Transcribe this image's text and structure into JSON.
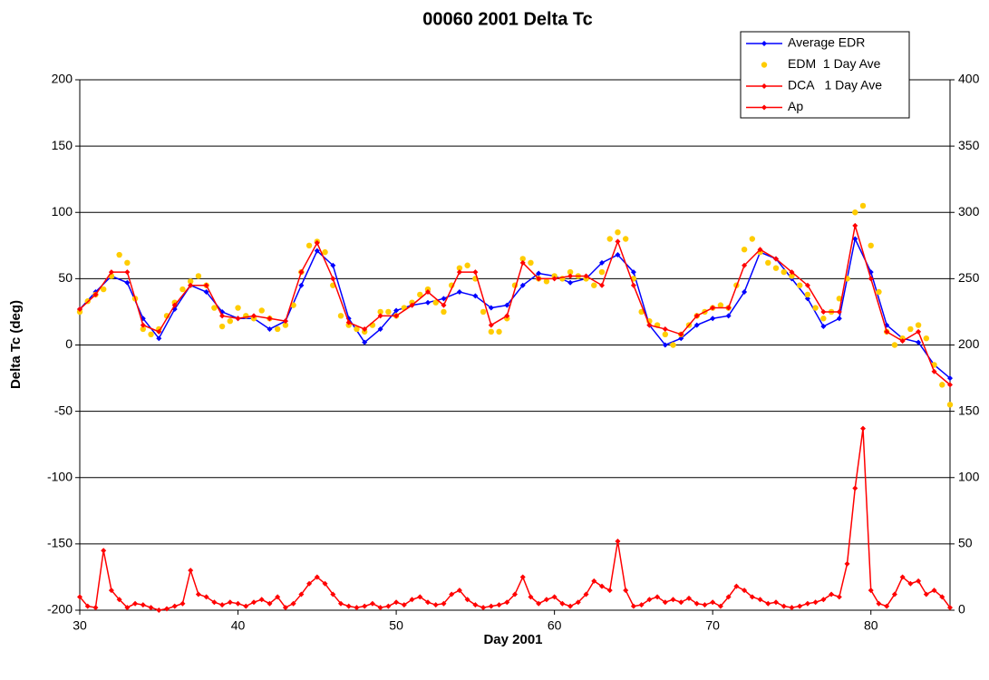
{
  "chart_data": {
    "type": "line",
    "title": "00060 2001 Delta Tc",
    "x_label": "Day 2001",
    "y_label": "Delta Tc (deg)",
    "xlim": [
      30,
      85
    ],
    "xticks": [
      30,
      40,
      50,
      60,
      70,
      80
    ],
    "ylim": [
      -200,
      200
    ],
    "yticks": [
      -200,
      -150,
      -100,
      -50,
      0,
      50,
      100,
      150,
      200
    ],
    "y2lim": [
      0,
      400
    ],
    "y2ticks": [
      0,
      50,
      100,
      150,
      200,
      250,
      300,
      350,
      400
    ],
    "grid": true,
    "legend": "top-right",
    "series": [
      {
        "name": "Average EDR",
        "color": "#0000ff",
        "line": true,
        "marker": "diamond",
        "x": [
          30,
          31,
          32,
          33,
          34,
          35,
          36,
          37,
          38,
          39,
          40,
          41,
          42,
          43,
          44,
          45,
          46,
          47,
          48,
          49,
          50,
          51,
          52,
          53,
          54,
          55,
          56,
          57,
          58,
          59,
          60,
          61,
          62,
          63,
          64,
          65,
          66,
          67,
          68,
          69,
          70,
          71,
          72,
          73,
          74,
          75,
          76,
          77,
          78,
          79,
          80,
          81,
          82,
          83,
          84,
          85
        ],
        "values": [
          27,
          40,
          52,
          47,
          20,
          5,
          27,
          45,
          40,
          25,
          20,
          20,
          12,
          18,
          45,
          71,
          60,
          20,
          2,
          12,
          26,
          30,
          32,
          35,
          40,
          37,
          28,
          30,
          45,
          54,
          52,
          47,
          50,
          62,
          68,
          55,
          15,
          0,
          5,
          15,
          20,
          22,
          40,
          70,
          65,
          50,
          35,
          14,
          20,
          80,
          55,
          15,
          5,
          2,
          -15,
          -25
        ]
      },
      {
        "name": "EDM  1 Day Ave",
        "color": "#ffcc00",
        "line": false,
        "marker": "dot",
        "x": [
          30,
          30.5,
          31,
          31.5,
          32,
          32.5,
          33,
          33.5,
          34,
          34.5,
          35,
          35.5,
          36,
          36.5,
          37,
          37.5,
          38,
          38.5,
          39,
          39.5,
          40,
          40.5,
          41,
          41.5,
          42,
          42.5,
          43,
          43.5,
          44,
          44.5,
          45,
          45.5,
          46,
          46.5,
          47,
          47.5,
          48,
          48.5,
          49,
          49.5,
          50,
          50.5,
          51,
          51.5,
          52,
          52.5,
          53,
          53.5,
          54,
          54.5,
          55,
          55.5,
          56,
          56.5,
          57,
          57.5,
          58,
          58.5,
          59,
          59.5,
          60,
          60.5,
          61,
          61.5,
          62,
          62.5,
          63,
          63.5,
          64,
          64.5,
          65,
          65.5,
          66,
          66.5,
          67,
          67.5,
          68,
          68.5,
          69,
          69.5,
          70,
          70.5,
          71,
          71.5,
          72,
          72.5,
          73,
          73.5,
          74,
          74.5,
          75,
          75.5,
          76,
          76.5,
          77,
          77.5,
          78,
          78.5,
          79,
          79.5,
          80,
          80.5,
          81,
          81.5,
          82,
          82.5,
          83,
          83.5,
          84,
          84.5,
          85
        ],
        "values": [
          25,
          33,
          38,
          42,
          52,
          68,
          62,
          35,
          12,
          8,
          12,
          22,
          32,
          42,
          48,
          52,
          45,
          28,
          14,
          18,
          28,
          22,
          20,
          26,
          20,
          12,
          15,
          30,
          55,
          75,
          78,
          70,
          45,
          22,
          15,
          12,
          10,
          15,
          25,
          25,
          22,
          28,
          32,
          38,
          42,
          32,
          25,
          45,
          58,
          60,
          50,
          25,
          10,
          10,
          20,
          45,
          65,
          62,
          50,
          48,
          52,
          50,
          55,
          52,
          50,
          45,
          55,
          80,
          85,
          80,
          50,
          25,
          18,
          15,
          8,
          0,
          8,
          15,
          22,
          25,
          28,
          30,
          28,
          45,
          72,
          80,
          70,
          62,
          58,
          55,
          52,
          45,
          38,
          28,
          20,
          25,
          35,
          50,
          100,
          105,
          75,
          40,
          10,
          0,
          5,
          12,
          15,
          5,
          -15,
          -30,
          -45
        ]
      },
      {
        "name": "DCA   1 Day Ave",
        "color": "#ff0000",
        "line": true,
        "marker": "diamond",
        "x": [
          30,
          31,
          32,
          33,
          34,
          35,
          36,
          37,
          38,
          39,
          40,
          41,
          42,
          43,
          44,
          45,
          46,
          47,
          48,
          49,
          50,
          51,
          52,
          53,
          54,
          55,
          56,
          57,
          58,
          59,
          60,
          61,
          62,
          63,
          64,
          65,
          66,
          67,
          68,
          69,
          70,
          71,
          72,
          73,
          74,
          75,
          76,
          77,
          78,
          79,
          80,
          81,
          82,
          83,
          84,
          85
        ],
        "values": [
          27,
          38,
          55,
          55,
          15,
          10,
          30,
          45,
          45,
          22,
          20,
          22,
          20,
          18,
          55,
          77,
          50,
          17,
          12,
          22,
          22,
          30,
          40,
          30,
          55,
          55,
          15,
          22,
          62,
          50,
          50,
          52,
          52,
          45,
          78,
          45,
          15,
          12,
          8,
          22,
          28,
          28,
          60,
          72,
          65,
          55,
          45,
          25,
          25,
          90,
          50,
          10,
          3,
          10,
          -20,
          -30
        ]
      },
      {
        "name": "Ap",
        "color": "#ff0000",
        "line": true,
        "marker": "diamond",
        "axis": "y2",
        "x": [
          30,
          30.5,
          31,
          31.5,
          32,
          32.5,
          33,
          33.5,
          34,
          34.5,
          35,
          35.5,
          36,
          36.5,
          37,
          37.5,
          38,
          38.5,
          39,
          39.5,
          40,
          40.5,
          41,
          41.5,
          42,
          42.5,
          43,
          43.5,
          44,
          44.5,
          45,
          45.5,
          46,
          46.5,
          47,
          47.5,
          48,
          48.5,
          49,
          49.5,
          50,
          50.5,
          51,
          51.5,
          52,
          52.5,
          53,
          53.5,
          54,
          54.5,
          55,
          55.5,
          56,
          56.5,
          57,
          57.5,
          58,
          58.5,
          59,
          59.5,
          60,
          60.5,
          61,
          61.5,
          62,
          62.5,
          63,
          63.5,
          64,
          64.5,
          65,
          65.5,
          66,
          66.5,
          67,
          67.5,
          68,
          68.5,
          69,
          69.5,
          70,
          70.5,
          71,
          71.5,
          72,
          72.5,
          73,
          73.5,
          74,
          74.5,
          75,
          75.5,
          76,
          76.5,
          77,
          77.5,
          78,
          78.5,
          79,
          79.5,
          80,
          80.5,
          81,
          81.5,
          82,
          82.5,
          83,
          83.5,
          84,
          84.5,
          85
        ],
        "values": [
          10,
          3,
          2,
          45,
          15,
          8,
          2,
          5,
          4,
          2,
          0,
          1,
          3,
          5,
          30,
          12,
          10,
          6,
          4,
          6,
          5,
          3,
          6,
          8,
          5,
          10,
          2,
          5,
          12,
          20,
          25,
          20,
          12,
          5,
          3,
          2,
          3,
          5,
          2,
          3,
          6,
          4,
          8,
          10,
          6,
          4,
          5,
          12,
          15,
          8,
          4,
          2,
          3,
          4,
          6,
          12,
          25,
          10,
          5,
          8,
          10,
          5,
          3,
          6,
          12,
          22,
          18,
          15,
          52,
          15,
          3,
          4,
          8,
          10,
          6,
          8,
          6,
          9,
          5,
          4,
          6,
          3,
          10,
          18,
          15,
          10,
          8,
          5,
          6,
          3,
          2,
          3,
          5,
          6,
          8,
          12,
          10,
          35,
          92,
          137,
          15,
          5,
          3,
          12,
          25,
          20,
          22,
          12,
          15,
          10,
          2
        ]
      }
    ]
  }
}
